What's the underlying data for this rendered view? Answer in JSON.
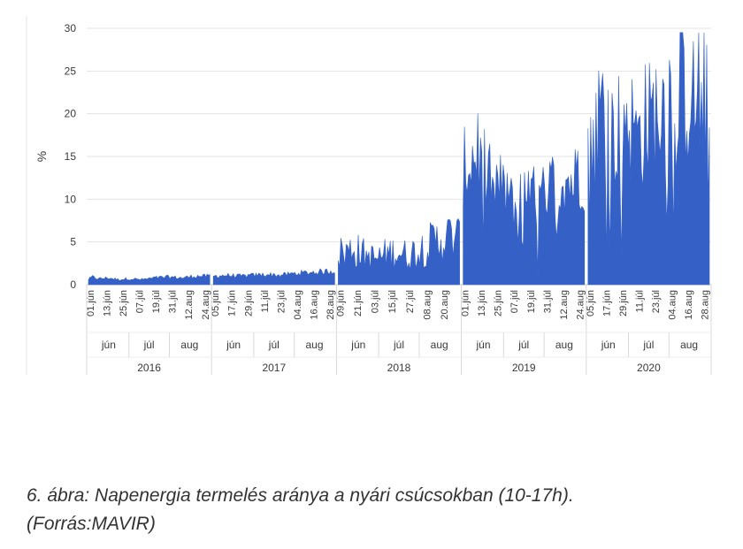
{
  "chart_data": {
    "type": "area",
    "ylabel": "%",
    "xlabel": "",
    "title": "",
    "ylim": [
      0,
      30
    ],
    "yticks": [
      0,
      5,
      10,
      15,
      20,
      25,
      30
    ],
    "grid": "horizontal",
    "color": "#3561c7",
    "years": [
      {
        "year": "2016",
        "months": [
          "jún",
          "júl",
          "aug"
        ],
        "ticks": [
          "01.jún",
          "13.jún",
          "25.jún",
          "07.júl",
          "19.júl",
          "31.júl",
          "12.aug",
          "24.aug"
        ],
        "anchors": [
          [
            0,
            0.6
          ],
          [
            3,
            0.9
          ],
          [
            8,
            0.7
          ],
          [
            15,
            0.8
          ],
          [
            22,
            0.6
          ],
          [
            30,
            0.7
          ],
          [
            40,
            0.6
          ],
          [
            50,
            0.8
          ],
          [
            60,
            0.9
          ],
          [
            70,
            0.8
          ],
          [
            80,
            1.0
          ],
          [
            91,
            1.0
          ]
        ]
      },
      {
        "year": "2017",
        "months": [
          "jún",
          "júl",
          "aug"
        ],
        "ticks": [
          "05.jún",
          "17.jún",
          "29.jún",
          "11.júl",
          "23.júl",
          "04.aug",
          "16.aug",
          "28.aug"
        ],
        "anchors": [
          [
            0,
            1.0
          ],
          [
            10,
            1.1
          ],
          [
            20,
            1.0
          ],
          [
            30,
            1.1
          ],
          [
            40,
            1.2
          ],
          [
            50,
            1.1
          ],
          [
            60,
            1.3
          ],
          [
            70,
            1.4
          ],
          [
            80,
            1.5
          ],
          [
            91,
            1.6
          ]
        ]
      },
      {
        "year": "2018",
        "months": [
          "jún",
          "júl",
          "aug"
        ],
        "ticks": [
          "09.jún",
          "21.jún",
          "03.júl",
          "15.júl",
          "27.júl",
          "08.aug",
          "20.aug"
        ],
        "anchors": [
          [
            0,
            3.7
          ],
          [
            5,
            3.8
          ],
          [
            12,
            4.2
          ],
          [
            20,
            3.5
          ],
          [
            28,
            3.0
          ],
          [
            36,
            3.6
          ],
          [
            44,
            3.9
          ],
          [
            52,
            3.4
          ],
          [
            60,
            4.1
          ],
          [
            68,
            4.7
          ],
          [
            76,
            5.3
          ],
          [
            84,
            5.6
          ],
          [
            91,
            5.3
          ]
        ]
      },
      {
        "year": "2019",
        "months": [
          "jún",
          "júl",
          "aug"
        ],
        "ticks": [
          "01.jún",
          "13.jún",
          "25.jún",
          "07.júl",
          "19.júl",
          "31.júl",
          "12.aug",
          "24.aug"
        ],
        "anchors": [
          [
            0,
            13.5
          ],
          [
            5,
            14.5
          ],
          [
            10,
            15.5
          ],
          [
            16,
            12.5
          ],
          [
            22,
            10.5
          ],
          [
            28,
            11.5
          ],
          [
            34,
            10.0
          ],
          [
            40,
            9.0
          ],
          [
            46,
            11.0
          ],
          [
            52,
            10.5
          ],
          [
            58,
            10.0
          ],
          [
            64,
            11.5
          ],
          [
            70,
            12.0
          ],
          [
            76,
            12.5
          ],
          [
            82,
            12.0
          ],
          [
            86,
            13.0
          ],
          [
            91,
            13.0
          ]
        ]
      },
      {
        "year": "2020",
        "months": [
          "jún",
          "júl",
          "aug"
        ],
        "ticks": [
          "05.jún",
          "17.jún",
          "29.jún",
          "11.júl",
          "23.júl",
          "04.aug",
          "16.aug",
          "28.aug"
        ],
        "anchors": [
          [
            0,
            16.0
          ],
          [
            6,
            19.0
          ],
          [
            12,
            21.0
          ],
          [
            18,
            17.5
          ],
          [
            24,
            18.5
          ],
          [
            30,
            19.5
          ],
          [
            36,
            17.0
          ],
          [
            42,
            18.0
          ],
          [
            48,
            19.5
          ],
          [
            54,
            21.0
          ],
          [
            60,
            22.0
          ],
          [
            66,
            21.5
          ],
          [
            72,
            22.5
          ],
          [
            78,
            21.0
          ],
          [
            84,
            21.5
          ],
          [
            91,
            20.5
          ]
        ]
      }
    ]
  },
  "caption": {
    "line1": "6. ábra: Napenergia termelés aránya a nyári csúcsokban (10-17h).",
    "line2": "(Forrás:MAVIR)"
  }
}
